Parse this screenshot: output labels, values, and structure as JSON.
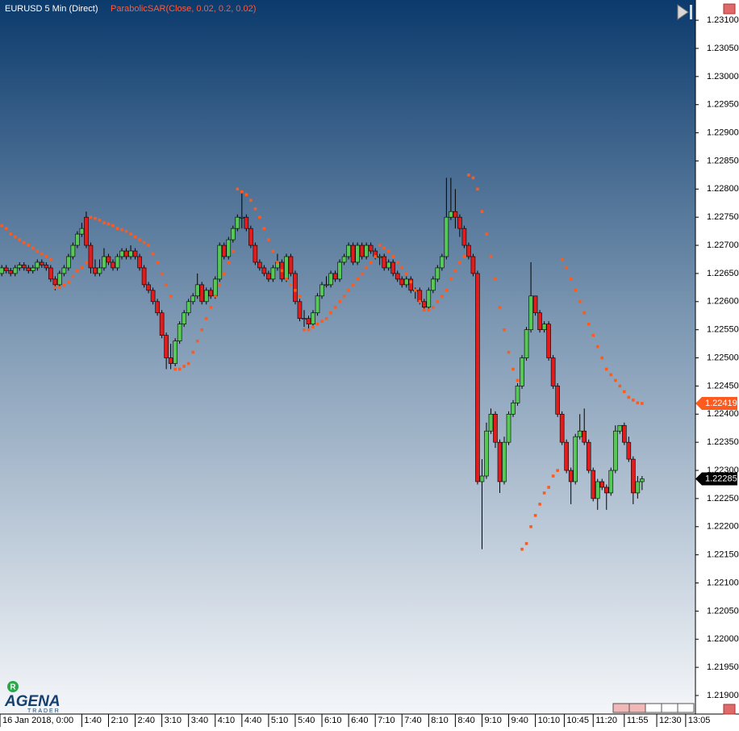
{
  "chart_data": {
    "type": "candlestick",
    "title": "EURUSD 5 Min (Direct)",
    "indicator": "ParabolicSAR(Close, 0.02, 0.2, 0.02)",
    "logo": "AGENA",
    "logo_sub": "TRADER",
    "logo_badge": "R",
    "up_color": "#55c855",
    "down_color": "#e01c1c",
    "sar_color": "#ff5a1e",
    "ylim": [
      1.21867,
      1.23136
    ],
    "xlim": [
      -0.4,
      156
    ],
    "yticks": [
      {
        "value": 1.219,
        "label": "1.21900"
      },
      {
        "value": 1.2195,
        "label": "1.21950"
      },
      {
        "value": 1.22,
        "label": "1.22000"
      },
      {
        "value": 1.2205,
        "label": "1.22050"
      },
      {
        "value": 1.221,
        "label": "1.22100"
      },
      {
        "value": 1.2215,
        "label": "1.22150"
      },
      {
        "value": 1.222,
        "label": "1.22200"
      },
      {
        "value": 1.2225,
        "label": "1.22250"
      },
      {
        "value": 1.223,
        "label": "1.22300"
      },
      {
        "value": 1.2235,
        "label": "1.22350"
      },
      {
        "value": 1.224,
        "label": "1.22400"
      },
      {
        "value": 1.2245,
        "label": "1.22450"
      },
      {
        "value": 1.225,
        "label": "1.22500"
      },
      {
        "value": 1.2255,
        "label": "1.22550"
      },
      {
        "value": 1.226,
        "label": "1.22600"
      },
      {
        "value": 1.2265,
        "label": "1.22650"
      },
      {
        "value": 1.227,
        "label": "1.22700"
      },
      {
        "value": 1.2275,
        "label": "1.22750"
      },
      {
        "value": 1.228,
        "label": "1.22800"
      },
      {
        "value": 1.2285,
        "label": "1.22850"
      },
      {
        "value": 1.229,
        "label": "1.22900"
      },
      {
        "value": 1.2295,
        "label": "1.22950"
      },
      {
        "value": 1.23,
        "label": "1.23000"
      },
      {
        "value": 1.2305,
        "label": "1.23050"
      },
      {
        "value": 1.231,
        "label": "1.23100"
      }
    ],
    "xticks": [
      {
        "value": -0.4,
        "label": "16 Jan 2018, 0:00"
      },
      {
        "value": 18,
        "label": "1:40"
      },
      {
        "value": 24,
        "label": "2:10"
      },
      {
        "value": 30,
        "label": "2:40"
      },
      {
        "value": 36,
        "label": "3:10"
      },
      {
        "value": 42,
        "label": "3:40"
      },
      {
        "value": 48,
        "label": "4:10"
      },
      {
        "value": 54,
        "label": "4:40"
      },
      {
        "value": 60,
        "label": "5:10"
      },
      {
        "value": 66,
        "label": "5:40"
      },
      {
        "value": 72,
        "label": "6:10"
      },
      {
        "value": 78,
        "label": "6:40"
      },
      {
        "value": 84,
        "label": "7:10"
      },
      {
        "value": 90,
        "label": "7:40"
      },
      {
        "value": 96,
        "label": "8:10"
      },
      {
        "value": 102,
        "label": "8:40"
      },
      {
        "value": 108,
        "label": "9:10"
      },
      {
        "value": 114,
        "label": "9:40"
      },
      {
        "value": 120,
        "label": "10:10"
      },
      {
        "value": 126.5,
        "label": "10:45"
      },
      {
        "value": 133,
        "label": "11:20"
      },
      {
        "value": 140,
        "label": "11:55"
      },
      {
        "value": 147.3,
        "label": "12:30"
      },
      {
        "value": 153.8,
        "label": "13:05"
      }
    ],
    "sar_last": 1.22419,
    "price_last": 1.22285,
    "candles": [
      [
        1.2265,
        1.22665,
        1.22645,
        1.2266
      ],
      [
        1.2266,
        1.22665,
        1.2265,
        1.22655
      ],
      [
        1.22655,
        1.2266,
        1.22645,
        1.2265
      ],
      [
        1.2265,
        1.22665,
        1.22645,
        1.2266
      ],
      [
        1.2266,
        1.2267,
        1.22655,
        1.22665
      ],
      [
        1.22665,
        1.2267,
        1.22655,
        1.2266
      ],
      [
        1.2266,
        1.22665,
        1.2265,
        1.22655
      ],
      [
        1.22655,
        1.22665,
        1.2265,
        1.2266
      ],
      [
        1.2266,
        1.22675,
        1.22655,
        1.2267
      ],
      [
        1.2267,
        1.22675,
        1.2266,
        1.22665
      ],
      [
        1.22665,
        1.2267,
        1.22655,
        1.2266
      ],
      [
        1.2266,
        1.22665,
        1.22635,
        1.2264
      ],
      [
        1.2264,
        1.22645,
        1.2262,
        1.2263
      ],
      [
        1.2263,
        1.22655,
        1.22625,
        1.2265
      ],
      [
        1.2265,
        1.22665,
        1.22645,
        1.2266
      ],
      [
        1.2266,
        1.22685,
        1.22655,
        1.2268
      ],
      [
        1.2268,
        1.22705,
        1.22675,
        1.227
      ],
      [
        1.227,
        1.22725,
        1.22695,
        1.2272
      ],
      [
        1.2272,
        1.2274,
        1.22715,
        1.2273
      ],
      [
        1.2275,
        1.2276,
        1.22695,
        1.227
      ],
      [
        1.227,
        1.22705,
        1.2265,
        1.2266
      ],
      [
        1.2266,
        1.22675,
        1.22645,
        1.2265
      ],
      [
        1.2265,
        1.22675,
        1.22645,
        1.2266
      ],
      [
        1.2266,
        1.22695,
        1.22655,
        1.2268
      ],
      [
        1.2268,
        1.22685,
        1.22665,
        1.2267
      ],
      [
        1.2267,
        1.22675,
        1.22655,
        1.2266
      ],
      [
        1.2266,
        1.22685,
        1.22655,
        1.2268
      ],
      [
        1.2268,
        1.22695,
        1.22675,
        1.2269
      ],
      [
        1.2269,
        1.22695,
        1.22675,
        1.2268
      ],
      [
        1.2268,
        1.227,
        1.22675,
        1.2269
      ],
      [
        1.2269,
        1.22695,
        1.22675,
        1.2268
      ],
      [
        1.2268,
        1.22685,
        1.22655,
        1.2266
      ],
      [
        1.2266,
        1.22665,
        1.22625,
        1.2263
      ],
      [
        1.2263,
        1.22635,
        1.22615,
        1.2262
      ],
      [
        1.2262,
        1.22625,
        1.22595,
        1.226
      ],
      [
        1.226,
        1.22605,
        1.22575,
        1.2258
      ],
      [
        1.2258,
        1.22585,
        1.22535,
        1.2254
      ],
      [
        1.2254,
        1.22545,
        1.2248,
        1.225
      ],
      [
        1.225,
        1.22525,
        1.2248,
        1.2249
      ],
      [
        1.2249,
        1.22535,
        1.22485,
        1.2253
      ],
      [
        1.2253,
        1.22565,
        1.22525,
        1.2256
      ],
      [
        1.2256,
        1.22585,
        1.22555,
        1.2258
      ],
      [
        1.2258,
        1.22605,
        1.22575,
        1.226
      ],
      [
        1.226,
        1.22615,
        1.22595,
        1.2261
      ],
      [
        1.2261,
        1.2265,
        1.22605,
        1.2263
      ],
      [
        1.2263,
        1.22635,
        1.22595,
        1.226
      ],
      [
        1.226,
        1.22625,
        1.22595,
        1.2262
      ],
      [
        1.2262,
        1.22625,
        1.22605,
        1.2261
      ],
      [
        1.2261,
        1.22645,
        1.22605,
        1.2264
      ],
      [
        1.2264,
        1.22705,
        1.22635,
        1.227
      ],
      [
        1.227,
        1.22705,
        1.22675,
        1.2268
      ],
      [
        1.2268,
        1.22715,
        1.22675,
        1.2271
      ],
      [
        1.2271,
        1.22735,
        1.22705,
        1.2273
      ],
      [
        1.2273,
        1.22755,
        1.22725,
        1.2275
      ],
      [
        1.2275,
        1.22795,
        1.2273,
        1.2275
      ],
      [
        1.2275,
        1.22755,
        1.22725,
        1.2273
      ],
      [
        1.2273,
        1.22735,
        1.22695,
        1.227
      ],
      [
        1.227,
        1.22705,
        1.22665,
        1.2267
      ],
      [
        1.2267,
        1.22675,
        1.22655,
        1.2266
      ],
      [
        1.2266,
        1.22665,
        1.22645,
        1.2265
      ],
      [
        1.2265,
        1.22655,
        1.22635,
        1.2264
      ],
      [
        1.2264,
        1.22665,
        1.22635,
        1.2266
      ],
      [
        1.2266,
        1.22685,
        1.22655,
        1.2267
      ],
      [
        1.2267,
        1.22675,
        1.22635,
        1.2264
      ],
      [
        1.2264,
        1.22685,
        1.22635,
        1.2268
      ],
      [
        1.2268,
        1.22685,
        1.22645,
        1.2265
      ],
      [
        1.2265,
        1.22655,
        1.22595,
        1.226
      ],
      [
        1.226,
        1.22605,
        1.22565,
        1.2257
      ],
      [
        1.2257,
        1.22585,
        1.22555,
        1.2257
      ],
      [
        1.2257,
        1.22575,
        1.2255,
        1.2256
      ],
      [
        1.2256,
        1.22585,
        1.22555,
        1.2258
      ],
      [
        1.2258,
        1.22615,
        1.22575,
        1.2261
      ],
      [
        1.2261,
        1.22635,
        1.22605,
        1.2263
      ],
      [
        1.2263,
        1.22645,
        1.22625,
        1.2263
      ],
      [
        1.2263,
        1.22655,
        1.22625,
        1.2265
      ],
      [
        1.2265,
        1.22655,
        1.22635,
        1.2264
      ],
      [
        1.2264,
        1.22675,
        1.22635,
        1.2267
      ],
      [
        1.2267,
        1.22685,
        1.22665,
        1.2268
      ],
      [
        1.2268,
        1.22705,
        1.22675,
        1.227
      ],
      [
        1.227,
        1.22705,
        1.22665,
        1.2267
      ],
      [
        1.2267,
        1.22705,
        1.22665,
        1.227
      ],
      [
        1.227,
        1.22705,
        1.22675,
        1.2268
      ],
      [
        1.2268,
        1.22705,
        1.22675,
        1.227
      ],
      [
        1.227,
        1.22705,
        1.22685,
        1.2269
      ],
      [
        1.2269,
        1.22695,
        1.22675,
        1.2268
      ],
      [
        1.2268,
        1.22685,
        1.22665,
        1.2268
      ],
      [
        1.2268,
        1.22685,
        1.22655,
        1.2266
      ],
      [
        1.2266,
        1.22675,
        1.22655,
        1.2267
      ],
      [
        1.2267,
        1.22675,
        1.22645,
        1.2265
      ],
      [
        1.2265,
        1.22655,
        1.22635,
        1.2264
      ],
      [
        1.2264,
        1.22645,
        1.22625,
        1.2263
      ],
      [
        1.2263,
        1.22645,
        1.22625,
        1.2264
      ],
      [
        1.2264,
        1.22645,
        1.22615,
        1.2262
      ],
      [
        1.2262,
        1.22625,
        1.22605,
        1.2262
      ],
      [
        1.2262,
        1.22625,
        1.22595,
        1.226
      ],
      [
        1.226,
        1.22605,
        1.22585,
        1.2259
      ],
      [
        1.2259,
        1.22625,
        1.22585,
        1.2262
      ],
      [
        1.2262,
        1.22645,
        1.22615,
        1.2264
      ],
      [
        1.2264,
        1.22665,
        1.22635,
        1.2266
      ],
      [
        1.2266,
        1.22685,
        1.22655,
        1.2268
      ],
      [
        1.2268,
        1.2282,
        1.22675,
        1.2275
      ],
      [
        1.2275,
        1.2282,
        1.22745,
        1.2276
      ],
      [
        1.2276,
        1.228,
        1.2273,
        1.2275
      ],
      [
        1.2275,
        1.22755,
        1.22715,
        1.2273
      ],
      [
        1.2273,
        1.22735,
        1.22695,
        1.227
      ],
      [
        1.227,
        1.22705,
        1.22675,
        1.2268
      ],
      [
        1.2268,
        1.22685,
        1.22645,
        1.2265
      ],
      [
        1.2265,
        1.22655,
        1.22275,
        1.2228
      ],
      [
        1.2228,
        1.2232,
        1.2216,
        1.2229
      ],
      [
        1.2229,
        1.22385,
        1.22285,
        1.2237
      ],
      [
        1.2237,
        1.2241,
        1.22365,
        1.224
      ],
      [
        1.224,
        1.22405,
        1.2234,
        1.2235
      ],
      [
        1.2235,
        1.22355,
        1.2226,
        1.2228
      ],
      [
        1.2228,
        1.2236,
        1.22275,
        1.2235
      ],
      [
        1.2235,
        1.22405,
        1.22345,
        1.224
      ],
      [
        1.224,
        1.22425,
        1.22395,
        1.2242
      ],
      [
        1.2242,
        1.22455,
        1.22415,
        1.2245
      ],
      [
        1.2245,
        1.22505,
        1.22445,
        1.225
      ],
      [
        1.225,
        1.22555,
        1.22495,
        1.2255
      ],
      [
        1.2255,
        1.2267,
        1.22545,
        1.2261
      ],
      [
        1.2261,
        1.2261,
        1.22575,
        1.2258
      ],
      [
        1.2258,
        1.22585,
        1.22545,
        1.2255
      ],
      [
        1.2255,
        1.22565,
        1.22545,
        1.2256
      ],
      [
        1.2256,
        1.22565,
        1.22495,
        1.225
      ],
      [
        1.225,
        1.22505,
        1.22445,
        1.2245
      ],
      [
        1.2245,
        1.22455,
        1.22395,
        1.224
      ],
      [
        1.224,
        1.22405,
        1.22345,
        1.2235
      ],
      [
        1.2235,
        1.22355,
        1.22295,
        1.223
      ],
      [
        1.223,
        1.22305,
        1.2224,
        1.2228
      ],
      [
        1.2228,
        1.22365,
        1.22275,
        1.2236
      ],
      [
        1.2236,
        1.224,
        1.22355,
        1.2237
      ],
      [
        1.2237,
        1.2241,
        1.22345,
        1.2235
      ],
      [
        1.2235,
        1.22355,
        1.22295,
        1.223
      ],
      [
        1.223,
        1.22305,
        1.22245,
        1.2225
      ],
      [
        1.2225,
        1.22285,
        1.2223,
        1.2228
      ],
      [
        1.2228,
        1.22285,
        1.22265,
        1.2227
      ],
      [
        1.2227,
        1.22275,
        1.2223,
        1.2226
      ],
      [
        1.2226,
        1.22305,
        1.22255,
        1.223
      ],
      [
        1.223,
        1.2238,
        1.22295,
        1.2237
      ],
      [
        1.2237,
        1.2238,
        1.22365,
        1.2238
      ],
      [
        1.2238,
        1.22385,
        1.22345,
        1.2235
      ],
      [
        1.2235,
        1.2236,
        1.22315,
        1.2232
      ],
      [
        1.2232,
        1.22325,
        1.2224,
        1.2226
      ],
      [
        1.2226,
        1.2229,
        1.2225,
        1.2228
      ],
      [
        1.2228,
        1.2229,
        1.22265,
        1.22285
      ]
    ],
    "sar": [
      1.22735,
      1.2273,
      1.2272,
      1.22715,
      1.2271,
      1.22705,
      1.227,
      1.22695,
      1.2269,
      1.22685,
      1.2268,
      1.22675,
      1.22625,
      1.22625,
      1.2263,
      1.22635,
      1.22645,
      1.22655,
      1.2266,
      1.2267,
      1.2275,
      1.22748,
      1.22745,
      1.2274,
      1.22738,
      1.22735,
      1.2273,
      1.22728,
      1.22725,
      1.2272,
      1.22715,
      1.2271,
      1.22705,
      1.227,
      1.22685,
      1.2267,
      1.2265,
      1.2263,
      1.2261,
      1.2248,
      1.2248,
      1.22485,
      1.2249,
      1.2251,
      1.2253,
      1.2255,
      1.2257,
      1.2259,
      1.2261,
      1.2263,
      1.2265,
      1.2267,
      1.2269,
      1.228,
      1.22795,
      1.2279,
      1.2278,
      1.22765,
      1.2275,
      1.2273,
      1.2271,
      1.2269,
      1.2267,
      1.22655,
      1.2264,
      1.2263,
      1.2262,
      1.2261,
      1.2255,
      1.2255,
      1.22555,
      1.2256,
      1.22565,
      1.2257,
      1.2258,
      1.2259,
      1.226,
      1.2261,
      1.2262,
      1.2263,
      1.2264,
      1.2265,
      1.2266,
      1.2267,
      1.2268,
      1.227,
      1.22695,
      1.2269,
      1.2268,
      1.2267,
      1.2266,
      1.2265,
      1.22635,
      1.2262,
      1.226,
      1.22585,
      1.22585,
      1.2259,
      1.226,
      1.2261,
      1.2262,
      1.2264,
      1.22655,
      1.2267,
      1.2268,
      1.22825,
      1.2282,
      1.228,
      1.2276,
      1.2272,
      1.2268,
      1.2264,
      1.2259,
      1.2255,
      1.2251,
      1.2248,
      1.2246,
      1.2216,
      1.2217,
      1.222,
      1.2222,
      1.2224,
      1.2226,
      1.2227,
      1.2229,
      1.223,
      1.22675,
      1.2266,
      1.2264,
      1.2262,
      1.226,
      1.2258,
      1.2256,
      1.2254,
      1.2252,
      1.225,
      1.2248,
      1.2247,
      1.2246,
      1.2245,
      1.2244,
      1.2243,
      1.22425,
      1.2242,
      1.22419
    ]
  }
}
